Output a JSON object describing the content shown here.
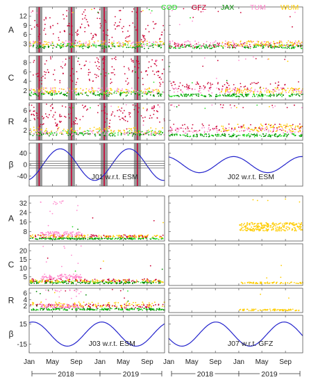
{
  "legend": [
    {
      "name": "COD",
      "color": "#22dd22"
    },
    {
      "name": "GFZ",
      "color": "#cc0033"
    },
    {
      "name": "JAX",
      "color": "#008800"
    },
    {
      "name": "TUM",
      "color": "#ff88cc"
    },
    {
      "name": "WUM",
      "color": "#ffcc00"
    }
  ],
  "chart_data": {
    "type": "scatter",
    "x_ticks": [
      "Jan",
      "May",
      "Sep",
      "Jan",
      "May",
      "Sep"
    ],
    "x_years": [
      "2018",
      "2019"
    ],
    "x_range": [
      "2018-01-01",
      "2019-11-30"
    ],
    "shaded_bands": [
      [
        "2018-02-05",
        "2018-03-10"
      ],
      [
        "2018-07-20",
        "2018-08-25"
      ],
      [
        "2019-01-05",
        "2019-02-10"
      ],
      [
        "2019-06-25",
        "2019-07-31"
      ]
    ],
    "shaded_band_color": "#9a9a9a",
    "panels_top": {
      "A": {
        "ylabel": "A",
        "yticks": [
          3,
          6,
          9,
          12
        ],
        "ylim": [
          0,
          15
        ]
      },
      "C": {
        "ylabel": "C",
        "yticks": [
          2,
          4,
          6,
          8
        ],
        "ylim": [
          0,
          9.5
        ]
      },
      "R": {
        "ylabel": "R",
        "yticks": [
          2,
          4,
          6
        ],
        "ylim": [
          0,
          7.5
        ]
      },
      "beta": {
        "ylabel": "β",
        "yticks": [
          40,
          0,
          -40
        ],
        "ylim": [
          -75,
          75
        ]
      }
    },
    "panels_bottom": {
      "A": {
        "ylabel": "A",
        "yticks": [
          8,
          16,
          24,
          32
        ],
        "ylim": [
          0,
          38
        ]
      },
      "C": {
        "ylabel": "C",
        "yticks": [
          5,
          10,
          15,
          20
        ],
        "ylim": [
          0,
          24
        ]
      },
      "R": {
        "ylabel": "R",
        "yticks": [
          2,
          4,
          6
        ],
        "ylim": [
          0,
          7.5
        ]
      },
      "beta": {
        "ylabel": "β",
        "yticks": [
          15,
          -15
        ],
        "ylim": [
          -28,
          28
        ]
      }
    },
    "beta_annotations": {
      "J01": "J01 w.r.t. ESM",
      "J02": "J02 w.r.t. ESM",
      "J03": "J03 w.r.t. ESM",
      "J07": "J07 w.r.t. GFZ"
    },
    "beta_curves": {
      "J01": {
        "amplitude": 55,
        "period_days": 355,
        "peak_date": "2018-06-10"
      },
      "J02": {
        "amplitude": 28,
        "period_days": 355,
        "peak_date": "2018-12-05"
      },
      "J03": {
        "amplitude": 18,
        "period_days": 355,
        "peak_date": "2018-01-20"
      },
      "J07": {
        "amplitude": 18,
        "period_days": 355,
        "peak_date": "2019-08-25"
      }
    },
    "series_levels": {
      "J01": {
        "A": {
          "COD": 2.5,
          "GFZ": 4,
          "JAX": 2,
          "TUM": 3,
          "WUM": 3
        },
        "C": {
          "COD": 1.5,
          "GFZ": 3.5,
          "JAX": 1.2,
          "TUM": 2,
          "WUM": 2
        },
        "R": {
          "COD": 1.5,
          "GFZ": 3,
          "JAX": 1.2,
          "TUM": 1.5,
          "WUM": 2
        }
      },
      "J02": {
        "A": {
          "COD": 2,
          "GFZ": 2.5,
          "JAX": 2,
          "TUM": 3,
          "WUM": 3
        },
        "C": {
          "COD": 1,
          "GFZ": 3,
          "JAX": 1,
          "TUM": 2,
          "WUM": 2
        },
        "R": {
          "COD": 1,
          "GFZ": 2.5,
          "JAX": 1,
          "TUM": 2,
          "WUM": 2.5
        }
      },
      "J03": {
        "A": {
          "COD": 2,
          "GFZ": 4,
          "JAX": 2,
          "TUM": 6,
          "WUM": 4
        },
        "C": {
          "COD": 2,
          "GFZ": 3,
          "JAX": 1.5,
          "TUM": 5,
          "WUM": 2.5
        },
        "R": {
          "COD": 1,
          "GFZ": 2,
          "JAX": 1,
          "TUM": 2,
          "WUM": 2.5
        }
      },
      "J07": {
        "A": {
          "WUM": 12
        },
        "C": {
          "WUM": 1.5
        },
        "R": {
          "WUM": 0.8
        }
      }
    }
  }
}
